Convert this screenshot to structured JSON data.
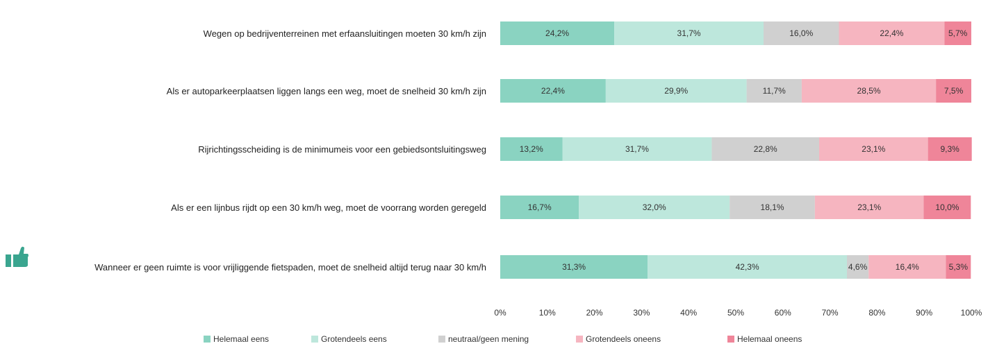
{
  "chart_data": {
    "type": "stacked_bar_horizontal",
    "categories": [
      "Wegen op bedrijventerreinen met erfaansluitingen moeten 30 km/h zijn",
      "Als er autoparkeerplaatsen liggen langs een weg, moet de snelheid 30 km/h zijn",
      "Rijrichtingsscheiding is de minimumeis voor een gebiedsontsluitingsweg",
      "Als er een lijnbus rijdt op een 30 km/h weg, moet de voorrang worden geregeld",
      "Wanneer er geen ruimte is voor vrijliggende fietspaden, moet de snelheid altijd terug naar 30 km/h"
    ],
    "series": [
      {
        "name": "Helemaal eens",
        "color": "#8ad3c1",
        "values": [
          24.2,
          22.4,
          13.2,
          16.7,
          31.3
        ],
        "value_labels": [
          "24,2%",
          "22,4%",
          "13,2%",
          "16,7%",
          "31,3%"
        ]
      },
      {
        "name": "Grotendeels eens",
        "color": "#bde7dc",
        "values": [
          31.7,
          29.9,
          31.7,
          32.0,
          42.3
        ],
        "value_labels": [
          "31,7%",
          "29,9%",
          "31,7%",
          "32,0%",
          "42,3%"
        ]
      },
      {
        "name": "neutraal/geen mening",
        "color": "#d0d0d0",
        "values": [
          16.0,
          11.7,
          22.8,
          18.1,
          4.6
        ],
        "value_labels": [
          "16,0%",
          "11,7%",
          "22,8%",
          "18,1%",
          "4,6%"
        ]
      },
      {
        "name": "Grotendeels oneens",
        "color": "#f6b5c0",
        "values": [
          22.4,
          28.5,
          23.1,
          23.1,
          16.4
        ],
        "value_labels": [
          "22,4%",
          "28,5%",
          "23,1%",
          "23,1%",
          "16,4%"
        ]
      },
      {
        "name": "Helemaal oneens",
        "color": "#ef8599",
        "values": [
          5.7,
          7.5,
          9.3,
          10.0,
          5.3
        ],
        "value_labels": [
          "5,7%",
          "7,5%",
          "9,3%",
          "10,0%",
          "5,3%"
        ]
      }
    ],
    "xlim": [
      0,
      100
    ],
    "xticks": [
      {
        "value": 0,
        "label": "0%"
      },
      {
        "value": 10,
        "label": "10%"
      },
      {
        "value": 20,
        "label": "20%"
      },
      {
        "value": 30,
        "label": "30%"
      },
      {
        "value": 40,
        "label": "40%"
      },
      {
        "value": 50,
        "label": "50%"
      },
      {
        "value": 60,
        "label": "60%"
      },
      {
        "value": 70,
        "label": "70%"
      },
      {
        "value": 80,
        "label": "80%"
      },
      {
        "value": 90,
        "label": "90%"
      },
      {
        "value": 100,
        "label": "100%"
      }
    ],
    "legend": "bottom"
  }
}
